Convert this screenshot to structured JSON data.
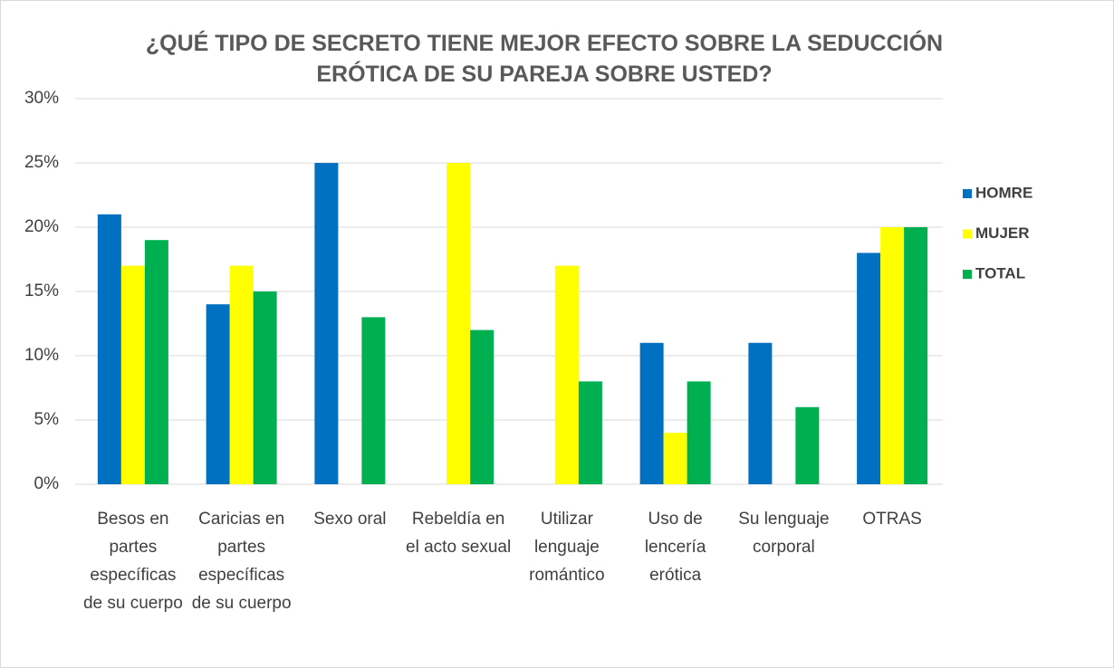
{
  "chart_data": {
    "type": "bar",
    "title": "¿QUÉ TIPO DE SECRETO TIENE MEJOR EFECTO SOBRE LA SEDUCCIÓN ERÓTICA DE SU PAREJA SOBRE USTED?",
    "categories": [
      "Besos en partes específicas de su cuerpo",
      "Caricias en partes específicas de su cuerpo",
      "Sexo oral",
      "Rebeldía en el acto sexual",
      "Utilizar lenguaje romántico",
      "Uso de lencería erótica",
      "Su lenguaje corporal",
      "OTRAS"
    ],
    "series": [
      {
        "name": "HOMRE",
        "color": "#0070c0",
        "values": [
          21,
          14,
          25,
          0,
          0,
          11,
          11,
          18
        ]
      },
      {
        "name": "MUJER",
        "color": "#ffff00",
        "values": [
          17,
          17,
          0,
          25,
          17,
          4,
          0,
          20
        ]
      },
      {
        "name": "TOTAL",
        "color": "#00b050",
        "values": [
          19,
          15,
          13,
          12,
          8,
          8,
          6,
          20
        ]
      }
    ],
    "ylim": [
      0,
      30
    ],
    "yticks": [
      {
        "value": 0,
        "label": "0%"
      },
      {
        "value": 5,
        "label": "5%"
      },
      {
        "value": 10,
        "label": "10%"
      },
      {
        "value": 15,
        "label": "15%"
      },
      {
        "value": 20,
        "label": "20%"
      },
      {
        "value": 25,
        "label": "25%"
      },
      {
        "value": 30,
        "label": "30%"
      }
    ],
    "grid": true,
    "legend": "right"
  }
}
